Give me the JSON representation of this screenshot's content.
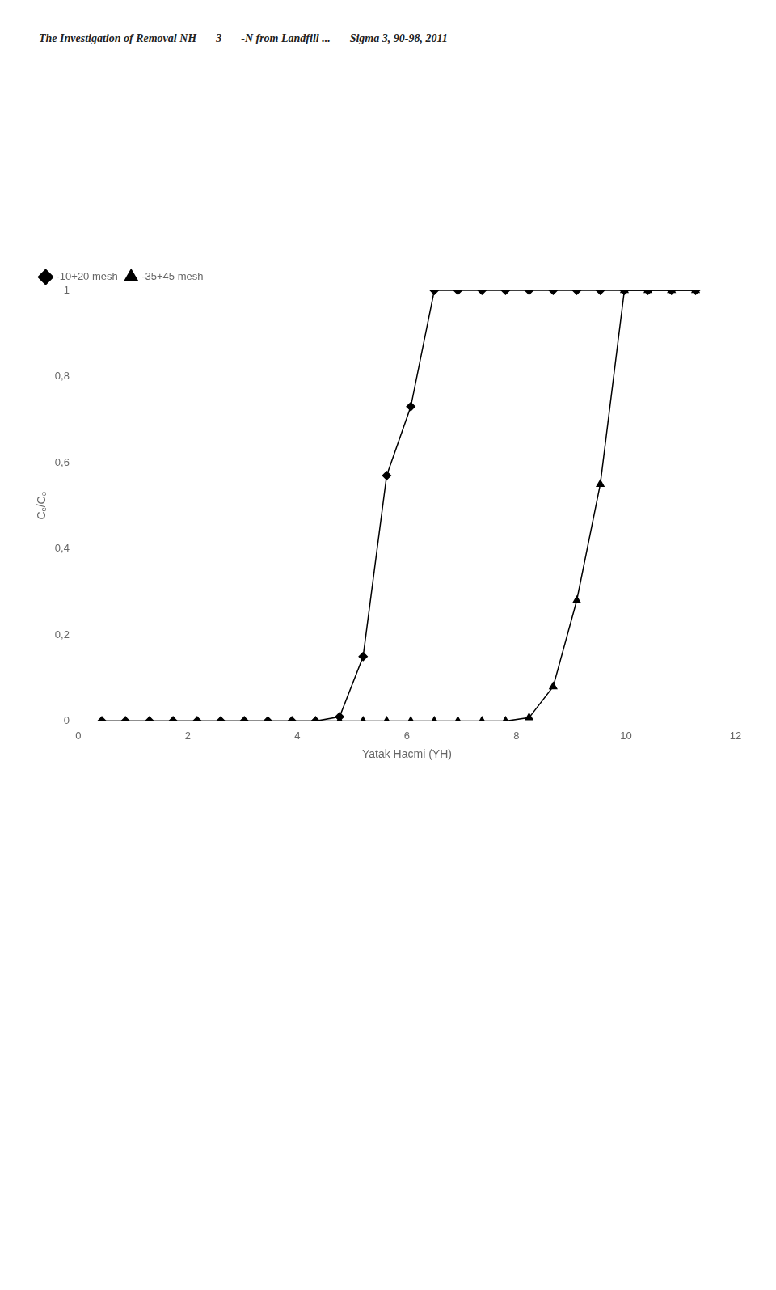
{
  "chart_data": {
    "type": "line",
    "annotations": [
      "The Investigation of Removal NH",
      "3",
      "-N from Landfill ...",
      "Sigma 3, 90-98, 2011"
    ],
    "x_label": "Yatak Hacmi (YH)",
    "y_label": "Cₑ/Cₒ",
    "x": [
      0.43,
      0.86,
      1.3,
      1.73,
      2.17,
      2.6,
      3.03,
      3.46,
      3.9,
      4.33,
      4.77,
      5.2,
      5.63,
      6.07,
      6.5,
      6.93,
      7.37,
      7.8,
      8.23,
      8.67,
      9.1,
      9.53,
      9.97,
      10.4,
      10.83,
      11.27
    ],
    "series": [
      {
        "name": "-10+20 mesh",
        "color": "#000000",
        "marker": "diamond",
        "values": [
          0.0,
          0.0,
          0.0,
          0.0,
          0.0,
          0.0,
          0.0,
          0.0,
          0.0,
          0.0,
          0.01,
          0.15,
          0.57,
          0.73,
          1.0,
          1.0,
          1.0,
          1.0,
          1.0,
          1.0,
          1.0,
          1.0,
          1.0,
          1.0,
          1.0,
          1.0
        ]
      },
      {
        "name": "-35+45 mesh",
        "color": "#000000",
        "marker": "triangle",
        "values": [
          0.0,
          0.0,
          0.0,
          0.0,
          0.0,
          0.0,
          0.0,
          0.0,
          0.0,
          0.0,
          0.0,
          0.0,
          0.0,
          0.0,
          0.0,
          0.0,
          0.0,
          0.0,
          0.008,
          0.08,
          0.28,
          0.55,
          1.0,
          1.0,
          1.0,
          1.0
        ]
      }
    ],
    "xlim": [
      0,
      12
    ],
    "ylim": [
      0,
      1
    ],
    "xticks": [
      0,
      2,
      4,
      6,
      8,
      10,
      12
    ],
    "yticks": [
      0,
      {
        "value": 0.2,
        "label": "0,2"
      },
      {
        "value": 0.4,
        "label": "0,4"
      },
      {
        "value": 0.6,
        "label": "0,6"
      },
      {
        "value": 0.8,
        "label": "0,8"
      },
      1
    ],
    "grid": false,
    "legend": "upper left"
  }
}
